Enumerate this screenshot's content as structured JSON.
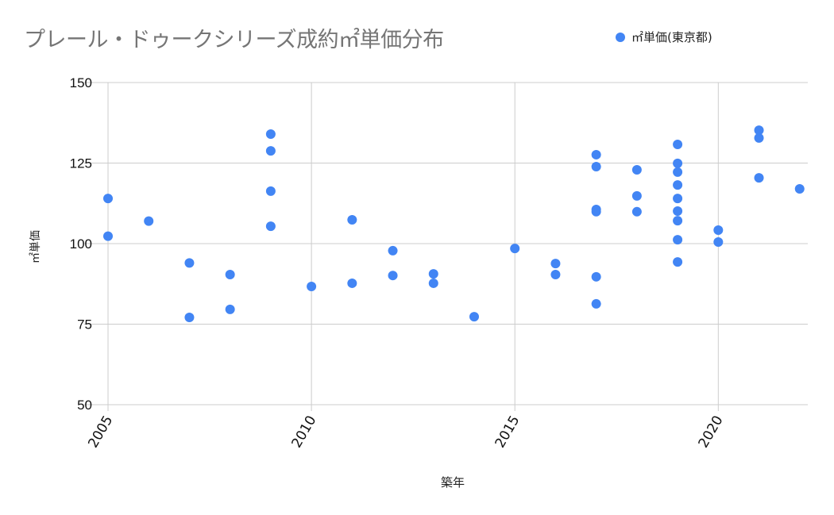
{
  "chart": {
    "title": "プレール・ドゥークシリーズ成約㎡単価分布",
    "legend_label": "㎡単価(東京都)",
    "xlabel": "築年",
    "ylabel": "㎡単価",
    "colors": {
      "series": "#4285F4",
      "grid": "#cccccc",
      "title": "#757575"
    }
  },
  "chart_data": {
    "type": "scatter",
    "title": "プレール・ドゥークシリーズ成約㎡単価分布",
    "xlabel": "築年",
    "ylabel": "㎡単価",
    "xlim": [
      2005,
      2022.2
    ],
    "ylim": [
      50,
      150
    ],
    "x_ticks": [
      2005,
      2010,
      2015,
      2020
    ],
    "y_ticks": [
      50,
      75,
      100,
      125,
      150
    ],
    "grid": true,
    "legend_position": "top-right",
    "series": [
      {
        "name": "㎡単価(東京都)",
        "color": "#4285F4",
        "points": [
          [
            2005,
            114.0
          ],
          [
            2005,
            102.3
          ],
          [
            2006,
            107.0
          ],
          [
            2007,
            94.0
          ],
          [
            2007,
            77.1
          ],
          [
            2008,
            90.4
          ],
          [
            2008,
            79.6
          ],
          [
            2009,
            134.0
          ],
          [
            2009,
            128.8
          ],
          [
            2009,
            116.3
          ],
          [
            2009,
            105.4
          ],
          [
            2010,
            86.7
          ],
          [
            2011,
            107.4
          ],
          [
            2011,
            87.7
          ],
          [
            2012,
            97.8
          ],
          [
            2012,
            90.1
          ],
          [
            2013,
            90.6
          ],
          [
            2013,
            87.7
          ],
          [
            2014,
            77.3
          ],
          [
            2015,
            98.5
          ],
          [
            2016,
            93.8
          ],
          [
            2016,
            90.4
          ],
          [
            2017,
            127.6
          ],
          [
            2017,
            123.9
          ],
          [
            2017,
            110.6
          ],
          [
            2017,
            109.9
          ],
          [
            2017,
            89.7
          ],
          [
            2017,
            81.3
          ],
          [
            2018,
            122.9
          ],
          [
            2018,
            114.8
          ],
          [
            2018,
            109.9
          ],
          [
            2019,
            130.8
          ],
          [
            2019,
            124.9
          ],
          [
            2019,
            122.2
          ],
          [
            2019,
            118.2
          ],
          [
            2019,
            114.0
          ],
          [
            2019,
            110.1
          ],
          [
            2019,
            107.1
          ],
          [
            2019,
            101.2
          ],
          [
            2019,
            94.3
          ],
          [
            2020,
            104.2
          ],
          [
            2020,
            100.5
          ],
          [
            2021,
            135.2
          ],
          [
            2021,
            132.8
          ],
          [
            2021,
            120.4
          ],
          [
            2022,
            117.0
          ]
        ]
      }
    ]
  }
}
